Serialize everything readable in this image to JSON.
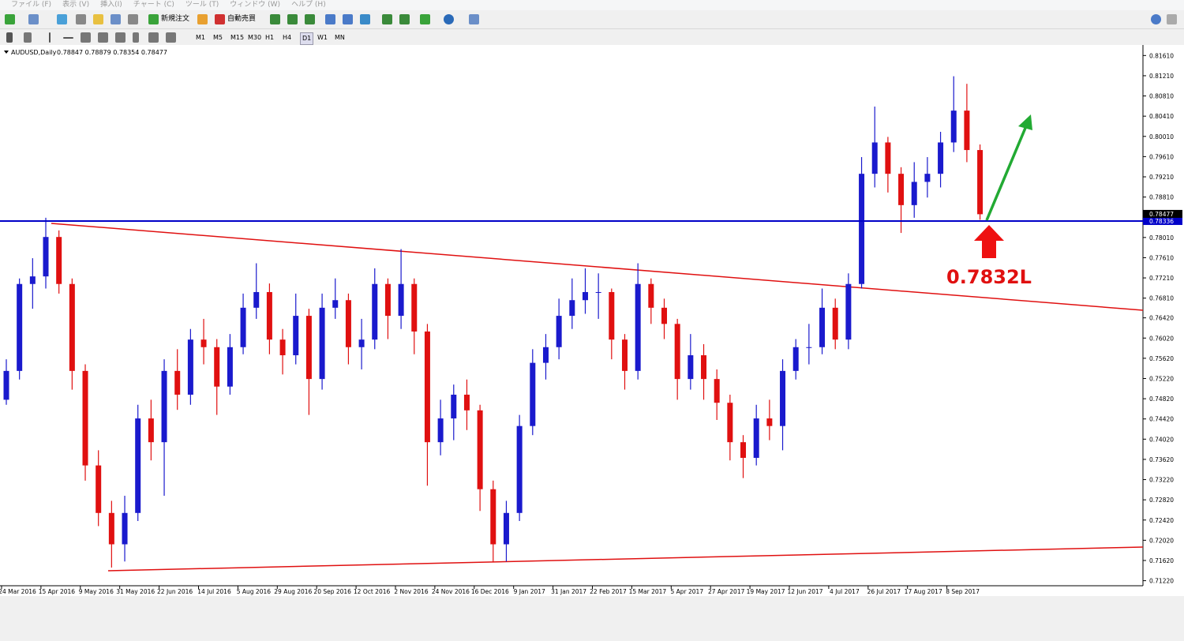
{
  "menu": [
    "ファイル (F)",
    "表示 (V)",
    "挿入(I)",
    "チャート (C)",
    "ツール (T)",
    "ウィンドウ (W)",
    "ヘルプ (H)"
  ],
  "toolbar": {
    "buttons": [
      "新規注文",
      "自動売買"
    ],
    "timeframes": [
      "M1",
      "M5",
      "M15",
      "M30",
      "H1",
      "H4",
      "D1",
      "W1",
      "MN"
    ]
  },
  "chart_data": {
    "type": "candlestick",
    "title": "AUDUSD,Daily",
    "quote": "0.78847 0.78879 0.78354 0.78477",
    "up_color": "#1a1acd",
    "down_color": "#e01010",
    "ylim": [
      0.7112,
      0.8174
    ],
    "yticks": [
      {
        "value": 0.8161,
        "label": "0.81610"
      },
      {
        "value": 0.8121,
        "label": "0.81210"
      },
      {
        "value": 0.8081,
        "label": "0.80810"
      },
      {
        "value": 0.8041,
        "label": "0.80410"
      },
      {
        "value": 0.8001,
        "label": "0.80010"
      },
      {
        "value": 0.7961,
        "label": "0.79610"
      },
      {
        "value": 0.7921,
        "label": "0.79210"
      },
      {
        "value": 0.7881,
        "label": "0.78810"
      },
      {
        "value": 0.7801,
        "label": "0.78010"
      },
      {
        "value": 0.7761,
        "label": "0.77610"
      },
      {
        "value": 0.7721,
        "label": "0.77210"
      },
      {
        "value": 0.7681,
        "label": "0.76810"
      },
      {
        "value": 0.7642,
        "label": "0.76420"
      },
      {
        "value": 0.7602,
        "label": "0.76020"
      },
      {
        "value": 0.7562,
        "label": "0.75620"
      },
      {
        "value": 0.7522,
        "label": "0.75220"
      },
      {
        "value": 0.7482,
        "label": "0.74820"
      },
      {
        "value": 0.7442,
        "label": "0.74420"
      },
      {
        "value": 0.7402,
        "label": "0.74020"
      },
      {
        "value": 0.7362,
        "label": "0.73620"
      },
      {
        "value": 0.7322,
        "label": "0.73220"
      },
      {
        "value": 0.7282,
        "label": "0.72820"
      },
      {
        "value": 0.7242,
        "label": "0.72420"
      },
      {
        "value": 0.7202,
        "label": "0.72020"
      },
      {
        "value": 0.7162,
        "label": "0.71620"
      },
      {
        "value": 0.7122,
        "label": "0.71220"
      }
    ],
    "xticks": [
      "24 Mar 2016",
      "15 Apr 2016",
      "9 May 2016",
      "31 May 2016",
      "22 Jun 2016",
      "14 Jul 2016",
      "5 Aug 2016",
      "29 Aug 2016",
      "20 Sep 2016",
      "12 Oct 2016",
      "2 Nov 2016",
      "24 Nov 2016",
      "16 Dec 2016",
      "9 Jan 2017",
      "31 Jan 2017",
      "22 Feb 2017",
      "15 Mar 2017",
      "5 Apr 2017",
      "27 Apr 2017",
      "19 May 2017",
      "12 Jun 2017",
      "4 Jul 2017",
      "26 Jul 2017",
      "17 Aug 2017",
      "8 Sep 2017"
    ],
    "level": {
      "value": 0.78336,
      "label": "0.78336",
      "color": "#0000c8"
    },
    "last_price": {
      "value": 0.78477,
      "label": "0.78477"
    },
    "annotation": "0.7832L",
    "ohlc": [
      [
        0.748,
        0.756,
        0.747,
        0.7537
      ],
      [
        0.7537,
        0.772,
        0.752,
        0.7709
      ],
      [
        0.7709,
        0.776,
        0.766,
        0.7724
      ],
      [
        0.7724,
        0.784,
        0.77,
        0.7802
      ],
      [
        0.7802,
        0.7815,
        0.769,
        0.7709
      ],
      [
        0.7709,
        0.772,
        0.75,
        0.7537
      ],
      [
        0.7537,
        0.755,
        0.732,
        0.735
      ],
      [
        0.735,
        0.738,
        0.723,
        0.7256
      ],
      [
        0.7256,
        0.728,
        0.7148,
        0.7194
      ],
      [
        0.7194,
        0.729,
        0.716,
        0.7256
      ],
      [
        0.7256,
        0.747,
        0.724,
        0.7443
      ],
      [
        0.7443,
        0.748,
        0.736,
        0.7396
      ],
      [
        0.7396,
        0.756,
        0.729,
        0.7537
      ],
      [
        0.7537,
        0.758,
        0.746,
        0.749
      ],
      [
        0.749,
        0.762,
        0.747,
        0.7599
      ],
      [
        0.7599,
        0.764,
        0.755,
        0.7584
      ],
      [
        0.7584,
        0.76,
        0.745,
        0.7506
      ],
      [
        0.7506,
        0.761,
        0.749,
        0.7584
      ],
      [
        0.7584,
        0.769,
        0.757,
        0.7662
      ],
      [
        0.7662,
        0.775,
        0.764,
        0.7693
      ],
      [
        0.7693,
        0.771,
        0.757,
        0.7599
      ],
      [
        0.7599,
        0.762,
        0.753,
        0.7568
      ],
      [
        0.7568,
        0.769,
        0.755,
        0.7646
      ],
      [
        0.7646,
        0.766,
        0.745,
        0.7521
      ],
      [
        0.7521,
        0.769,
        0.75,
        0.7662
      ],
      [
        0.7662,
        0.772,
        0.764,
        0.7677
      ],
      [
        0.7677,
        0.769,
        0.755,
        0.7584
      ],
      [
        0.7584,
        0.764,
        0.754,
        0.7599
      ],
      [
        0.7599,
        0.774,
        0.758,
        0.7709
      ],
      [
        0.7709,
        0.772,
        0.76,
        0.7646
      ],
      [
        0.7646,
        0.7778,
        0.762,
        0.7709
      ],
      [
        0.7709,
        0.772,
        0.757,
        0.7615
      ],
      [
        0.7615,
        0.763,
        0.731,
        0.7396
      ],
      [
        0.7396,
        0.748,
        0.737,
        0.7443
      ],
      [
        0.7443,
        0.751,
        0.74,
        0.749
      ],
      [
        0.749,
        0.752,
        0.742,
        0.7459
      ],
      [
        0.7459,
        0.747,
        0.726,
        0.7303
      ],
      [
        0.7303,
        0.732,
        0.7158,
        0.7194
      ],
      [
        0.7194,
        0.728,
        0.716,
        0.7256
      ],
      [
        0.7256,
        0.745,
        0.724,
        0.7428
      ],
      [
        0.7428,
        0.758,
        0.741,
        0.7553
      ],
      [
        0.7553,
        0.761,
        0.752,
        0.7584
      ],
      [
        0.7584,
        0.768,
        0.756,
        0.7646
      ],
      [
        0.7646,
        0.772,
        0.762,
        0.7677
      ],
      [
        0.7677,
        0.774,
        0.765,
        0.7693
      ],
      [
        0.7693,
        0.773,
        0.764,
        0.7693
      ],
      [
        0.7693,
        0.77,
        0.756,
        0.7599
      ],
      [
        0.7599,
        0.761,
        0.75,
        0.7537
      ],
      [
        0.7537,
        0.775,
        0.752,
        0.7709
      ],
      [
        0.7709,
        0.772,
        0.763,
        0.7662
      ],
      [
        0.7662,
        0.768,
        0.76,
        0.763
      ],
      [
        0.763,
        0.764,
        0.748,
        0.7521
      ],
      [
        0.7521,
        0.761,
        0.75,
        0.7568
      ],
      [
        0.7568,
        0.759,
        0.748,
        0.7521
      ],
      [
        0.7521,
        0.754,
        0.744,
        0.7474
      ],
      [
        0.7474,
        0.749,
        0.736,
        0.7396
      ],
      [
        0.7396,
        0.741,
        0.7325,
        0.7365
      ],
      [
        0.7365,
        0.747,
        0.735,
        0.7443
      ],
      [
        0.7443,
        0.748,
        0.74,
        0.7428
      ],
      [
        0.7428,
        0.756,
        0.738,
        0.7537
      ],
      [
        0.7537,
        0.76,
        0.752,
        0.7584
      ],
      [
        0.7584,
        0.763,
        0.755,
        0.7584
      ],
      [
        0.7584,
        0.77,
        0.757,
        0.7662
      ],
      [
        0.7662,
        0.768,
        0.758,
        0.7599
      ],
      [
        0.7599,
        0.773,
        0.758,
        0.7709
      ],
      [
        0.7709,
        0.796,
        0.77,
        0.7927
      ],
      [
        0.7927,
        0.806,
        0.79,
        0.7989
      ],
      [
        0.7989,
        0.8,
        0.789,
        0.7927
      ],
      [
        0.7927,
        0.794,
        0.781,
        0.7865
      ],
      [
        0.7865,
        0.795,
        0.784,
        0.7911
      ],
      [
        0.7911,
        0.796,
        0.788,
        0.7927
      ],
      [
        0.7927,
        0.801,
        0.79,
        0.7989
      ],
      [
        0.7989,
        0.812,
        0.797,
        0.8052
      ],
      [
        0.8052,
        0.8105,
        0.795,
        0.7974
      ],
      [
        0.7974,
        0.7985,
        0.7836,
        0.7847
      ]
    ]
  }
}
